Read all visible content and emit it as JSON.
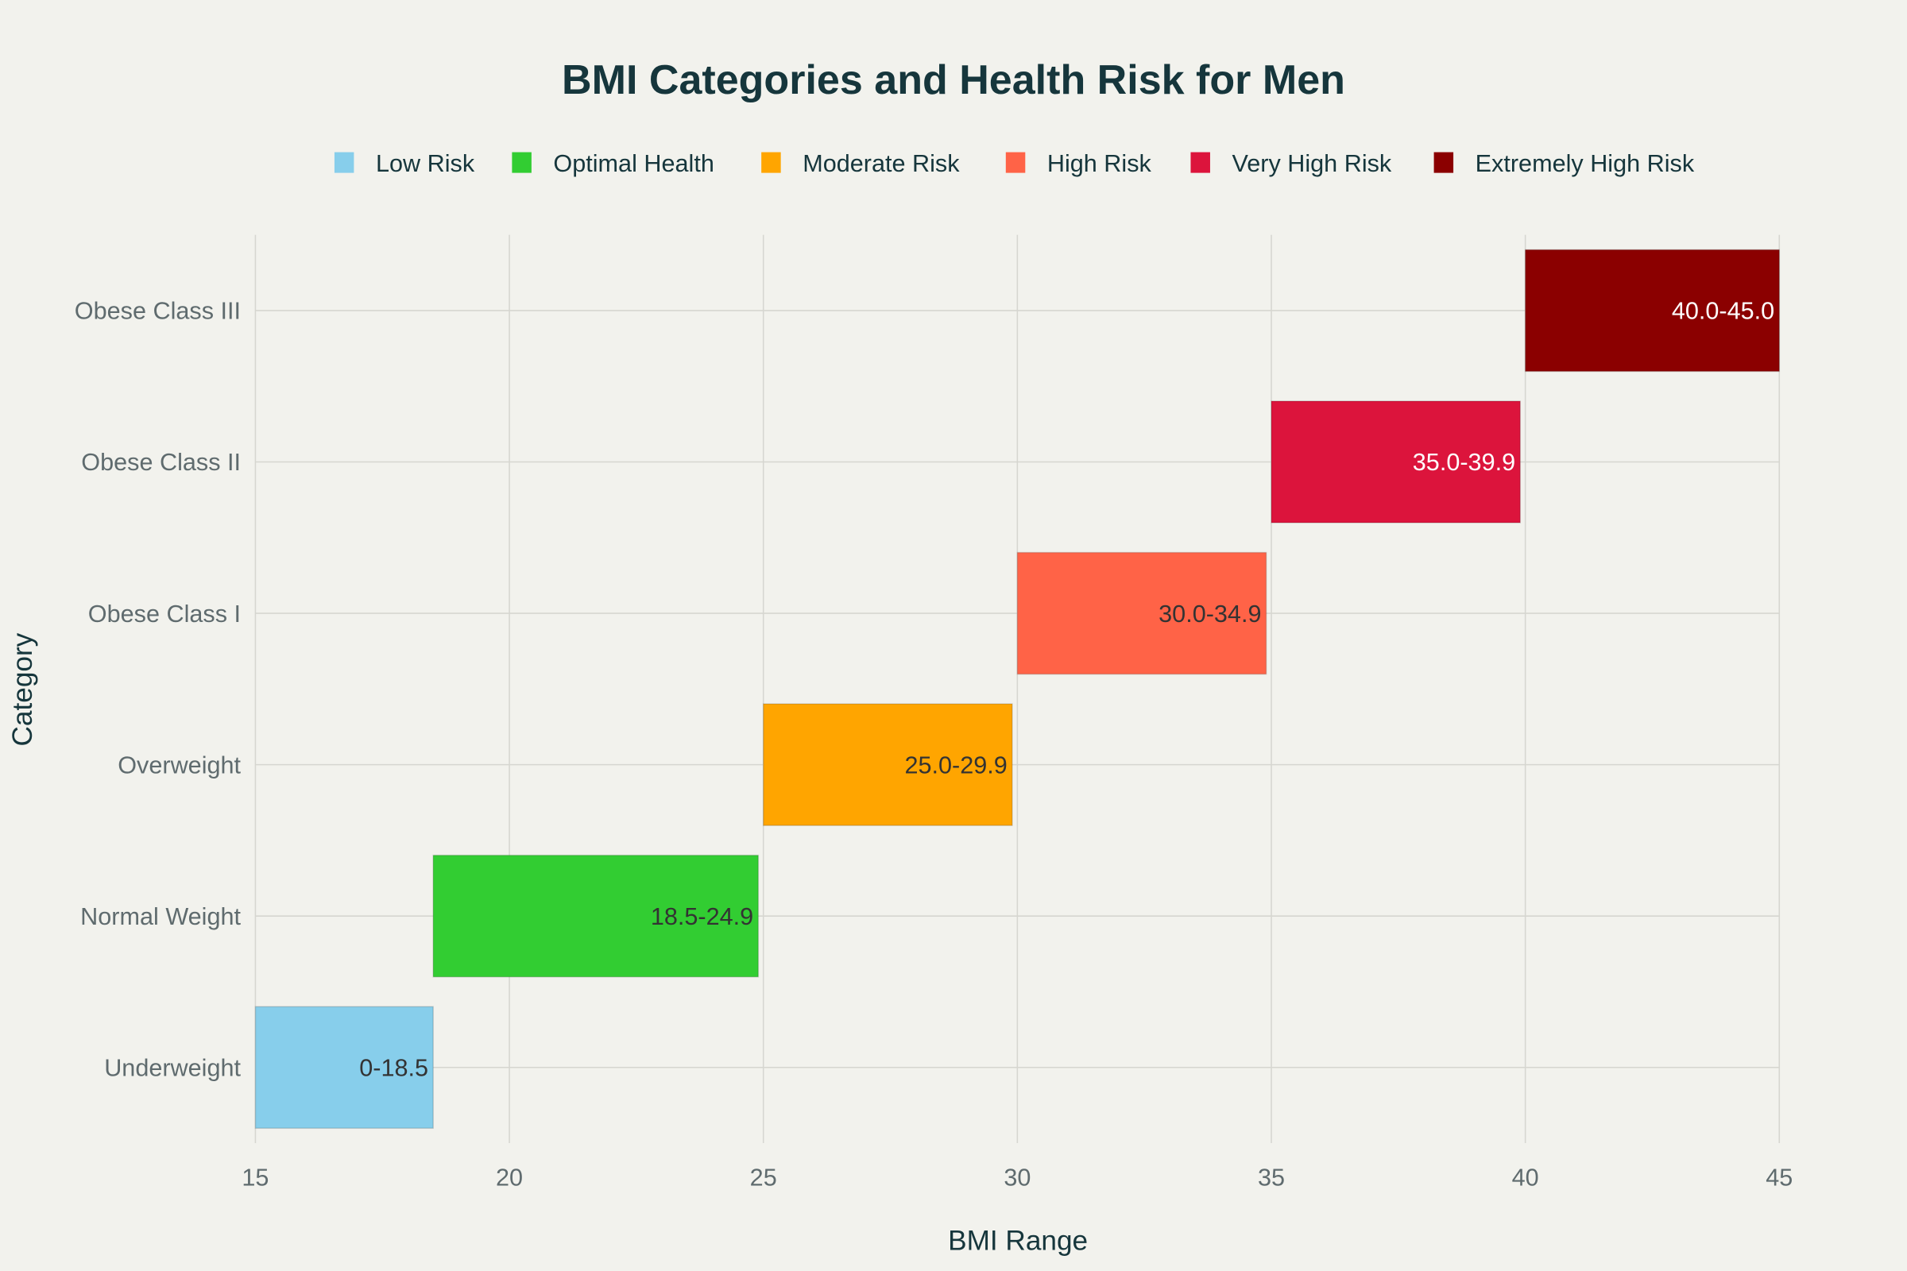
{
  "chart_data": {
    "type": "bar",
    "orientation": "horizontal",
    "title": "BMI Categories and Health Risk for Men",
    "xlabel": "BMI Range",
    "ylabel": "Category",
    "xlim": [
      15,
      45
    ],
    "xticks": [
      15,
      20,
      25,
      30,
      35,
      40,
      45
    ],
    "grid": true,
    "legend_placement": "top",
    "categories": [
      "Underweight",
      "Normal Weight",
      "Overweight",
      "Obese Class I",
      "Obese Class II",
      "Obese Class III"
    ],
    "bars": [
      {
        "category": "Underweight",
        "start": 0,
        "end": 18.5,
        "label": "0-18.5",
        "risk": "Low Risk"
      },
      {
        "category": "Normal Weight",
        "start": 18.5,
        "end": 24.9,
        "label": "18.5-24.9",
        "risk": "Optimal Health"
      },
      {
        "category": "Overweight",
        "start": 25.0,
        "end": 29.9,
        "label": "25.0-29.9",
        "risk": "Moderate Risk"
      },
      {
        "category": "Obese Class I",
        "start": 30.0,
        "end": 34.9,
        "label": "30.0-34.9",
        "risk": "High Risk"
      },
      {
        "category": "Obese Class II",
        "start": 35.0,
        "end": 39.9,
        "label": "35.0-39.9",
        "risk": "Very High Risk"
      },
      {
        "category": "Obese Class III",
        "start": 40.0,
        "end": 45.0,
        "label": "40.0-45.0",
        "risk": "Extremely High Risk"
      }
    ],
    "legend": [
      {
        "name": "Low Risk",
        "color": "#87CEEB",
        "label_color": "#333333"
      },
      {
        "name": "Optimal Health",
        "color": "#32CD32",
        "label_color": "#333333"
      },
      {
        "name": "Moderate Risk",
        "color": "#FFA500",
        "label_color": "#333333"
      },
      {
        "name": "High Risk",
        "color": "#FF6347",
        "label_color": "#333333"
      },
      {
        "name": "Very High Risk",
        "color": "#DC143C",
        "label_color": "#ffffff"
      },
      {
        "name": "Extremely High Risk",
        "color": "#8B0000",
        "label_color": "#ffffff"
      }
    ]
  }
}
